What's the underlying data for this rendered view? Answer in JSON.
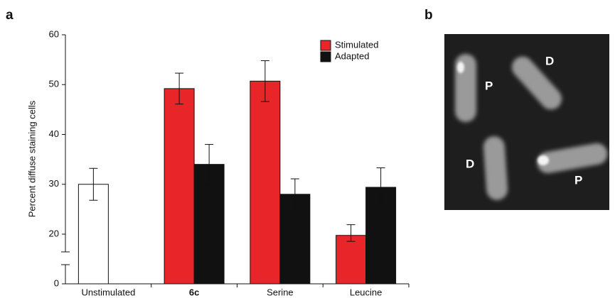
{
  "panel_labels": [
    "a",
    "b"
  ],
  "chart_data": {
    "type": "bar",
    "ylabel": "Percent diffuse staining cells",
    "categories": [
      "Unstimulated",
      "6c",
      "Serine",
      "Leucine"
    ],
    "control": {
      "values": [
        30
      ],
      "errors": [
        3.2
      ],
      "color": "#ffffff"
    },
    "series": [
      {
        "name": "Stimulated",
        "color": "#e8262a",
        "values": [
          null,
          49.2,
          50.7,
          19.5
        ],
        "errors": [
          null,
          3.1,
          4.1,
          2.4
        ]
      },
      {
        "name": "Adapted",
        "color": "#111111",
        "values": [
          null,
          34,
          28,
          29.4
        ],
        "errors": [
          null,
          4,
          3.1,
          3.9
        ]
      }
    ],
    "ylim": [
      0,
      60
    ],
    "yticks": [
      0,
      20,
      30,
      40,
      50,
      60
    ],
    "axis_break": true,
    "legend": "upper right"
  },
  "micrograph": {
    "labels": [
      "P",
      "D",
      "D",
      "P"
    ]
  }
}
